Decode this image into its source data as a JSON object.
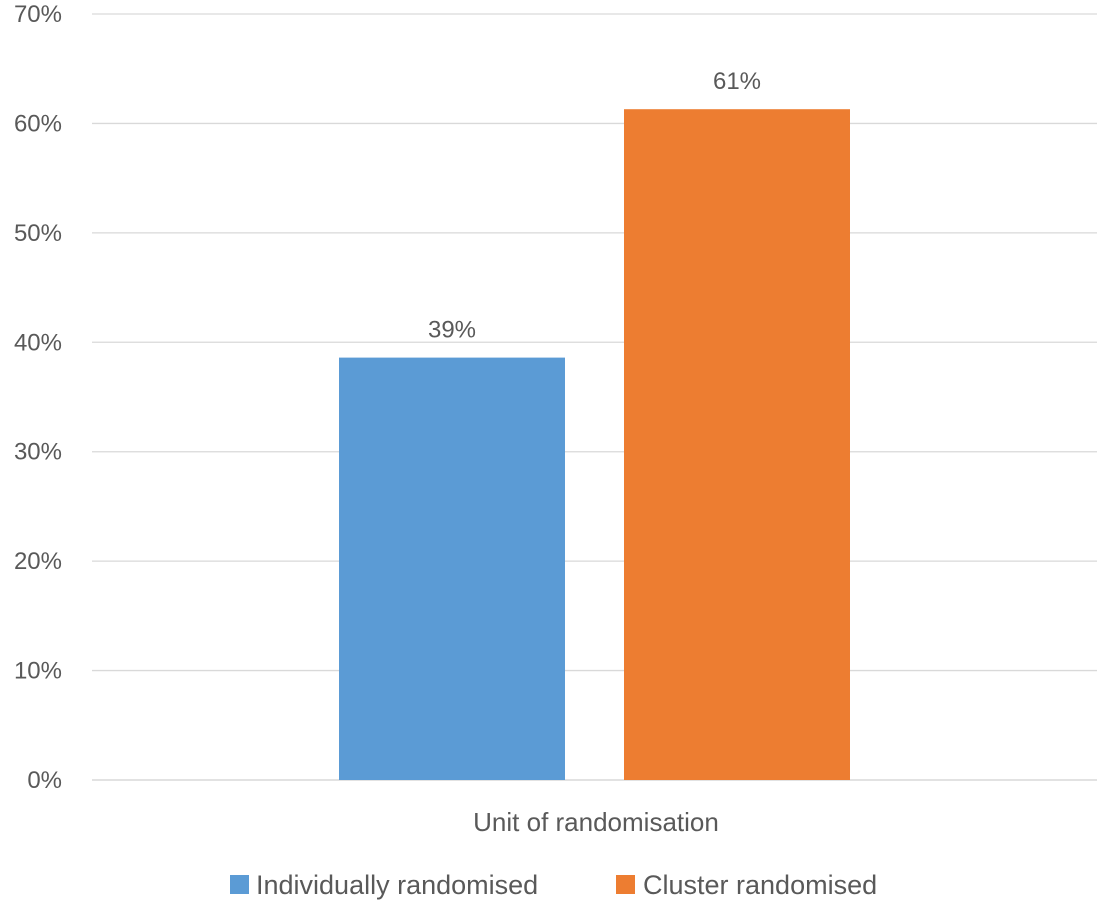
{
  "chart_data": {
    "type": "bar",
    "categories": [
      "Unit of randomisation"
    ],
    "series": [
      {
        "name": "Individually randomised",
        "values": [
          0.386
        ],
        "data_label": "39%",
        "color": "#5b9bd5"
      },
      {
        "name": "Cluster randomised",
        "values": [
          0.613
        ],
        "data_label": "61%",
        "color": "#ed7d31"
      }
    ],
    "title": "",
    "xlabel": "Unit of randomisation",
    "ylabel": "",
    "ylim": [
      0,
      0.7
    ],
    "y_ticks": [
      0,
      0.1,
      0.2,
      0.3,
      0.4,
      0.5,
      0.6,
      0.7
    ],
    "y_tick_labels": [
      "0%",
      "10%",
      "20%",
      "30%",
      "40%",
      "50%",
      "60%",
      "70%"
    ],
    "grid": true,
    "legend_position": "bottom"
  }
}
